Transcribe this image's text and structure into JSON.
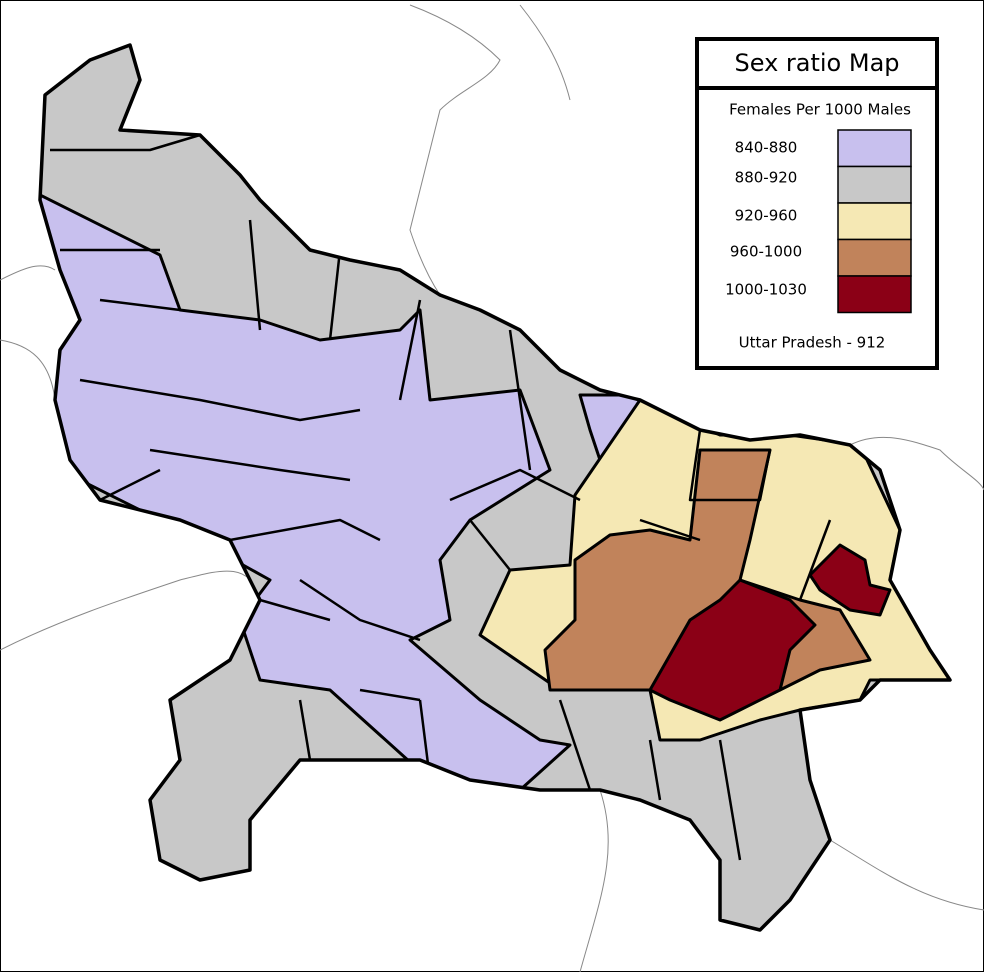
{
  "title": "Sex ratio Map",
  "subtitle": "Females Per 1000 Males",
  "legend": {
    "items": [
      {
        "label": "840-880",
        "color": "#c8c0ee"
      },
      {
        "label": "880-920",
        "color": "#c8c8c8"
      },
      {
        "label": "920-960",
        "color": "#f5e8b4"
      },
      {
        "label": "960-1000",
        "color": "#c1835b"
      },
      {
        "label": "1000-1030",
        "color": "#8b0016"
      }
    ]
  },
  "footer": "Uttar Pradesh - 912"
}
